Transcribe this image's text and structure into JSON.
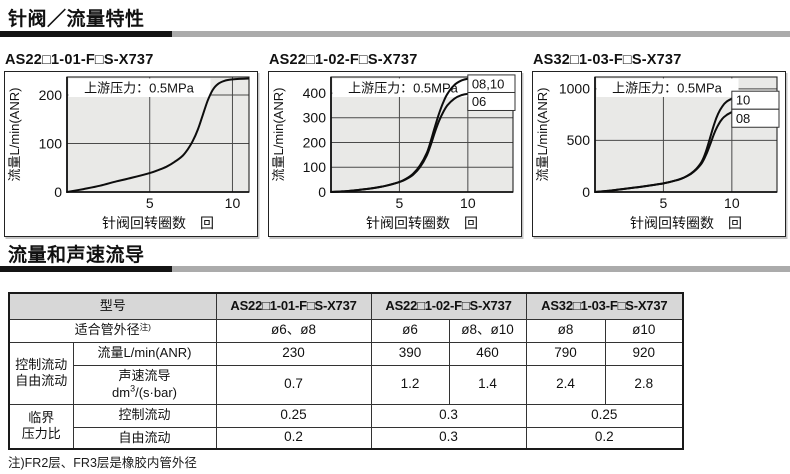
{
  "sections": [
    {
      "title": "针阀／流量特性"
    },
    {
      "title": "流量和声速流导"
    }
  ],
  "chart_data": [
    {
      "type": "line",
      "title": "AS22□1-01-F□S-X737",
      "annotation": "上游压力：0.5MPa",
      "xlabel": "针阀回转圈数　回",
      "ylabel": "流量L/min(ANR)",
      "x_ticks": [
        5,
        10
      ],
      "y_ticks": [
        0,
        100,
        200
      ],
      "xlim": [
        0,
        11
      ],
      "ylim": [
        0,
        237
      ],
      "grid": true,
      "series": [
        {
          "name": "",
          "label_y": null,
          "points": [
            [
              0,
              0
            ],
            [
              1,
              6
            ],
            [
              2,
              13
            ],
            [
              3,
              22
            ],
            [
              4,
              30
            ],
            [
              5,
              39
            ],
            [
              5.5,
              45
            ],
            [
              6,
              52
            ],
            [
              6.5,
              62
            ],
            [
              7,
              75
            ],
            [
              7.3,
              88
            ],
            [
              7.6,
              105
            ],
            [
              7.9,
              128
            ],
            [
              8.2,
              158
            ],
            [
              8.5,
              188
            ],
            [
              8.8,
              210
            ],
            [
              9.1,
              222
            ],
            [
              9.5,
              229
            ],
            [
              10,
              232
            ],
            [
              11,
              234
            ]
          ]
        }
      ]
    },
    {
      "type": "line",
      "title": "AS22□1-02-F□S-X737",
      "annotation": "上游压力：0.5MPa",
      "xlabel": "针阀回转圈数　回",
      "ylabel": "流量L/min(ANR)",
      "x_ticks": [
        5,
        10
      ],
      "y_ticks": [
        0,
        100,
        200,
        300,
        400
      ],
      "xlim": [
        0,
        13.3
      ],
      "ylim": [
        0,
        465
      ],
      "grid": true,
      "series": [
        {
          "name": "08,10",
          "label_y": 437,
          "points": [
            [
              0,
              0
            ],
            [
              1,
              3
            ],
            [
              2,
              8
            ],
            [
              3,
              15
            ],
            [
              4,
              25
            ],
            [
              5,
              41
            ],
            [
              5.5,
              54
            ],
            [
              6,
              74
            ],
            [
              6.5,
              107
            ],
            [
              7,
              158
            ],
            [
              7.3,
              208
            ],
            [
              7.6,
              265
            ],
            [
              7.9,
              318
            ],
            [
              8.2,
              362
            ],
            [
              8.5,
              396
            ],
            [
              9,
              432
            ],
            [
              9.5,
              450
            ],
            [
              10,
              458
            ]
          ]
        },
        {
          "name": "06",
          "label_y": 366,
          "points": [
            [
              0,
              0
            ],
            [
              1,
              3
            ],
            [
              2,
              8
            ],
            [
              3,
              15
            ],
            [
              4,
              25
            ],
            [
              5,
              40
            ],
            [
              5.5,
              52
            ],
            [
              6,
              70
            ],
            [
              6.5,
              100
            ],
            [
              7,
              148
            ],
            [
              7.3,
              192
            ],
            [
              7.6,
              243
            ],
            [
              7.9,
              288
            ],
            [
              8.2,
              323
            ],
            [
              8.5,
              350
            ],
            [
              9,
              377
            ],
            [
              9.5,
              391
            ],
            [
              10,
              397
            ]
          ]
        }
      ]
    },
    {
      "type": "line",
      "title": "AS32□1-03-F□S-X737",
      "annotation": "上游压力：0.5MPa",
      "xlabel": "针阀回转圈数　回",
      "ylabel": "流量L/min(ANR)",
      "x_ticks": [
        5,
        10
      ],
      "y_ticks": [
        0,
        500,
        1000
      ],
      "xlim": [
        0,
        13.3
      ],
      "ylim": [
        0,
        1115
      ],
      "grid": true,
      "series": [
        {
          "name": "10",
          "label_y": 890,
          "points": [
            [
              0,
              0
            ],
            [
              1,
              12
            ],
            [
              2,
              28
            ],
            [
              3,
              45
            ],
            [
              4,
              63
            ],
            [
              5,
              83
            ],
            [
              6,
              115
            ],
            [
              6.5,
              140
            ],
            [
              7,
              178
            ],
            [
              7.4,
              225
            ],
            [
              7.8,
              295
            ],
            [
              8.1,
              390
            ],
            [
              8.4,
              520
            ],
            [
              8.7,
              655
            ],
            [
              9,
              760
            ],
            [
              9.3,
              830
            ],
            [
              9.6,
              875
            ],
            [
              10,
              905
            ]
          ]
        },
        {
          "name": "08",
          "label_y": 715,
          "points": [
            [
              0,
              0
            ],
            [
              1,
              12
            ],
            [
              2,
              28
            ],
            [
              3,
              45
            ],
            [
              4,
              63
            ],
            [
              5,
              83
            ],
            [
              6,
              115
            ],
            [
              6.5,
              140
            ],
            [
              7,
              175
            ],
            [
              7.4,
              218
            ],
            [
              7.8,
              278
            ],
            [
              8.1,
              355
            ],
            [
              8.4,
              455
            ],
            [
              8.7,
              565
            ],
            [
              9,
              650
            ],
            [
              9.3,
              710
            ],
            [
              9.6,
              745
            ],
            [
              10,
              775
            ]
          ]
        }
      ]
    }
  ],
  "table": {
    "header": {
      "model_label": "型号",
      "models": [
        "AS22□1-01-F□S-X737",
        "AS22□1-02-F□S-X737",
        "AS32□1-03-F□S-X737"
      ]
    },
    "tube_row": {
      "label": "适合管外径",
      "note_sup": "注)",
      "values": [
        "ø6、ø8",
        "ø6",
        "ø8、ø10",
        "ø8",
        "ø10"
      ]
    },
    "flow_group": {
      "label_line1": "控制流动",
      "label_line2": "自由流动"
    },
    "flow_row": {
      "label": "流量L/min(ANR)",
      "values": [
        "230",
        "390",
        "460",
        "790",
        "920"
      ]
    },
    "conductance_row": {
      "label_line1": "声速流导",
      "label_pre": "dm",
      "label_sup": "3",
      "label_post": "/(s·bar)",
      "values": [
        "0.7",
        "1.2",
        "1.4",
        "2.4",
        "2.8"
      ]
    },
    "critical_group": {
      "label_line1": "临界",
      "label_line2": "压力比"
    },
    "controlled_row": {
      "label": "控制流动",
      "values": [
        "0.25",
        "0.3",
        "0.25"
      ]
    },
    "free_row": {
      "label": "自由流动",
      "values": [
        "0.2",
        "0.3",
        "0.2"
      ]
    }
  },
  "footnote": "注)FR2层、FR3层是橡胶内管外径",
  "colors": {
    "plot_bg": "#e9e9e7",
    "grid_line": "#4a4a4a",
    "curve": "#0d0d0d",
    "header_bg": "#d7d7d7",
    "rule_dark": "#141414",
    "rule_gray": "#ababab"
  }
}
